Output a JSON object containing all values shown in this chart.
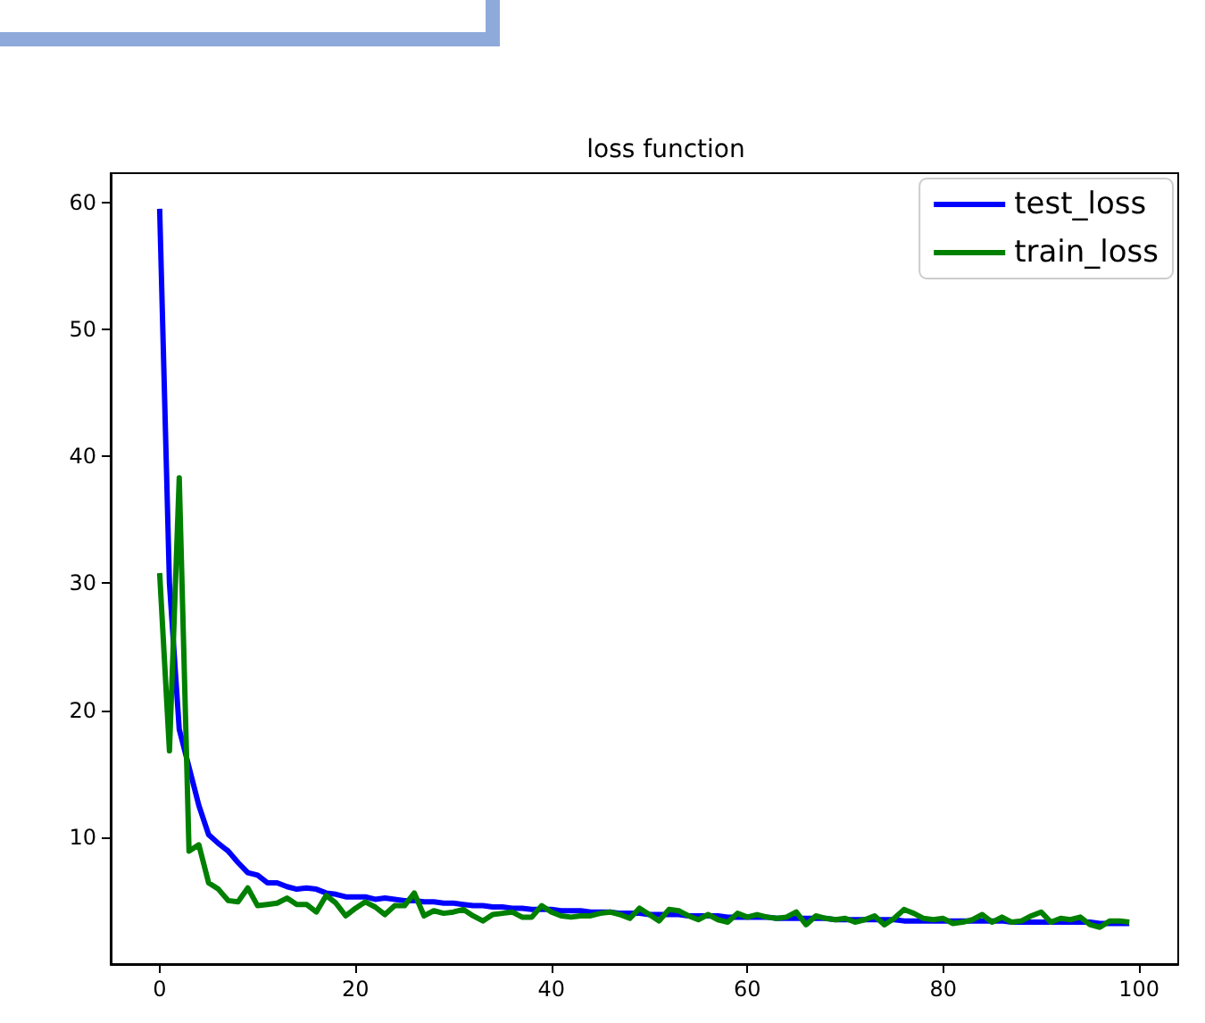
{
  "chart_data": {
    "type": "line",
    "title": "loss function",
    "x": [
      0,
      1,
      2,
      3,
      4,
      5,
      6,
      7,
      8,
      9,
      10,
      11,
      12,
      13,
      14,
      15,
      16,
      17,
      18,
      19,
      20,
      21,
      22,
      23,
      24,
      25,
      26,
      27,
      28,
      29,
      30,
      31,
      32,
      33,
      34,
      35,
      36,
      37,
      38,
      39,
      40,
      41,
      42,
      43,
      44,
      45,
      46,
      47,
      48,
      49,
      50,
      51,
      52,
      53,
      54,
      55,
      56,
      57,
      58,
      59,
      60,
      61,
      62,
      63,
      64,
      65,
      66,
      67,
      68,
      69,
      70,
      71,
      72,
      73,
      74,
      75,
      76,
      77,
      78,
      79,
      80,
      81,
      82,
      83,
      84,
      85,
      86,
      87,
      88,
      89,
      90,
      91,
      92,
      93,
      94,
      95,
      96,
      97,
      98,
      99
    ],
    "series": [
      {
        "name": "test_loss",
        "color": "#0000ff",
        "values": [
          59.5,
          30,
          18.5,
          15.5,
          12.5,
          10.2,
          9.5,
          8.9,
          8,
          7.2,
          7,
          6.4,
          6.4,
          6.1,
          5.9,
          6,
          5.9,
          5.6,
          5.5,
          5.3,
          5.3,
          5.3,
          5.1,
          5.2,
          5.1,
          5,
          5,
          4.9,
          4.9,
          4.8,
          4.8,
          4.7,
          4.6,
          4.6,
          4.5,
          4.5,
          4.4,
          4.4,
          4.3,
          4.3,
          4.3,
          4.2,
          4.2,
          4.2,
          4.1,
          4.1,
          4.1,
          4,
          4,
          4,
          3.9,
          3.9,
          3.9,
          3.9,
          3.8,
          3.8,
          3.8,
          3.8,
          3.7,
          3.7,
          3.7,
          3.7,
          3.7,
          3.6,
          3.6,
          3.6,
          3.6,
          3.6,
          3.6,
          3.5,
          3.5,
          3.5,
          3.5,
          3.5,
          3.5,
          3.5,
          3.4,
          3.4,
          3.4,
          3.4,
          3.4,
          3.4,
          3.4,
          3.4,
          3.4,
          3.4,
          3.4,
          3.3,
          3.3,
          3.3,
          3.3,
          3.3,
          3.3,
          3.3,
          3.3,
          3.3,
          3.2,
          3.2,
          3.2,
          3.2
        ]
      },
      {
        "name": "train_loss",
        "color": "#008000",
        "values": [
          30.8,
          16.8,
          38.3,
          8.9,
          9.4,
          6.4,
          5.9,
          5,
          4.9,
          6,
          4.6,
          4.7,
          4.8,
          5.2,
          4.7,
          4.7,
          4.1,
          5.4,
          4.8,
          3.8,
          4.4,
          4.9,
          4.5,
          3.9,
          4.6,
          4.6,
          5.6,
          3.8,
          4.2,
          4,
          4.1,
          4.3,
          3.8,
          3.4,
          3.9,
          4,
          4.1,
          3.7,
          3.7,
          4.6,
          4.1,
          3.8,
          3.7,
          3.8,
          3.8,
          4,
          4.1,
          3.9,
          3.6,
          4.4,
          3.9,
          3.4,
          4.3,
          4.2,
          3.8,
          3.5,
          3.9,
          3.5,
          3.3,
          4,
          3.7,
          3.9,
          3.7,
          3.6,
          3.7,
          4.1,
          3.1,
          3.8,
          3.6,
          3.5,
          3.6,
          3.3,
          3.5,
          3.8,
          3.1,
          3.6,
          4.3,
          4,
          3.6,
          3.5,
          3.6,
          3.2,
          3.3,
          3.5,
          3.9,
          3.3,
          3.7,
          3.3,
          3.4,
          3.8,
          4.1,
          3.3,
          3.6,
          3.5,
          3.7,
          3.1,
          2.9,
          3.4,
          3.4,
          3.3
        ]
      }
    ],
    "xlim": [
      -5,
      104
    ],
    "xticks": [
      0,
      20,
      40,
      60,
      80,
      100
    ],
    "ylim": [
      0,
      62.3
    ],
    "yticks": [
      10,
      20,
      30,
      40,
      50,
      60
    ],
    "grid": false,
    "legend": "top right",
    "marker": "none",
    "line_style": "solid"
  }
}
